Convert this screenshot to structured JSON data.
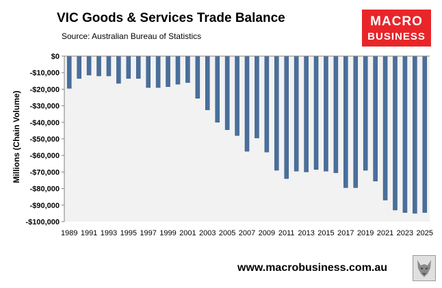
{
  "header": {
    "title": "VIC Goods & Services Trade Balance",
    "source": "Source:  Australian Bureau of Statistics"
  },
  "logo": {
    "line1": "MACRO",
    "line2": "BUSINESS"
  },
  "footer": {
    "website": "www.macrobusiness.com.au",
    "wolf_icon": "wolf-icon"
  },
  "chart_data": {
    "type": "bar",
    "title": "VIC Goods & Services Trade Balance",
    "ylabel": "Millions (Chain Volume)",
    "xlabel": "",
    "ylim": [
      -100000,
      0
    ],
    "grid": false,
    "bar_color": "#4a6f9c",
    "plot_background": "#f2f2f2",
    "y_ticks": [
      0,
      -10000,
      -20000,
      -30000,
      -40000,
      -50000,
      -60000,
      -70000,
      -80000,
      -90000,
      -100000
    ],
    "y_tick_labels": [
      "$0",
      "-$10,000",
      "-$20,000",
      "-$30,000",
      "-$40,000",
      "-$50,000",
      "-$60,000",
      "-$70,000",
      "-$80,000",
      "-$90,000",
      "-$100,000"
    ],
    "x_tick_labels": [
      "1989",
      "1991",
      "1993",
      "1995",
      "1997",
      "1999",
      "2001",
      "2003",
      "2005",
      "2007",
      "2009",
      "2011",
      "2013",
      "2015",
      "2017",
      "2019",
      "2021",
      "2023",
      "2025"
    ],
    "categories": [
      "1989",
      "1990",
      "1991",
      "1992",
      "1993",
      "1994",
      "1995",
      "1996",
      "1997",
      "1998",
      "1999",
      "2000",
      "2001",
      "2002",
      "2003",
      "2004",
      "2005",
      "2006",
      "2007",
      "2008",
      "2009",
      "2010",
      "2011",
      "2012",
      "2013",
      "2014",
      "2015",
      "2016",
      "2017",
      "2018",
      "2019",
      "2020",
      "2021",
      "2022",
      "2023",
      "2024",
      "2025"
    ],
    "values": [
      -19500,
      -13500,
      -11500,
      -12000,
      -12000,
      -16500,
      -13500,
      -13500,
      -19000,
      -19000,
      -18500,
      -17000,
      -16000,
      -25500,
      -32500,
      -40000,
      -44500,
      -48000,
      -57500,
      -49500,
      -58000,
      -69000,
      -74000,
      -69500,
      -70000,
      -68500,
      -69500,
      -70500,
      -79500,
      -79500,
      -69000,
      -75500,
      -87000,
      -93000,
      -94500,
      -95000,
      -94500
    ]
  }
}
